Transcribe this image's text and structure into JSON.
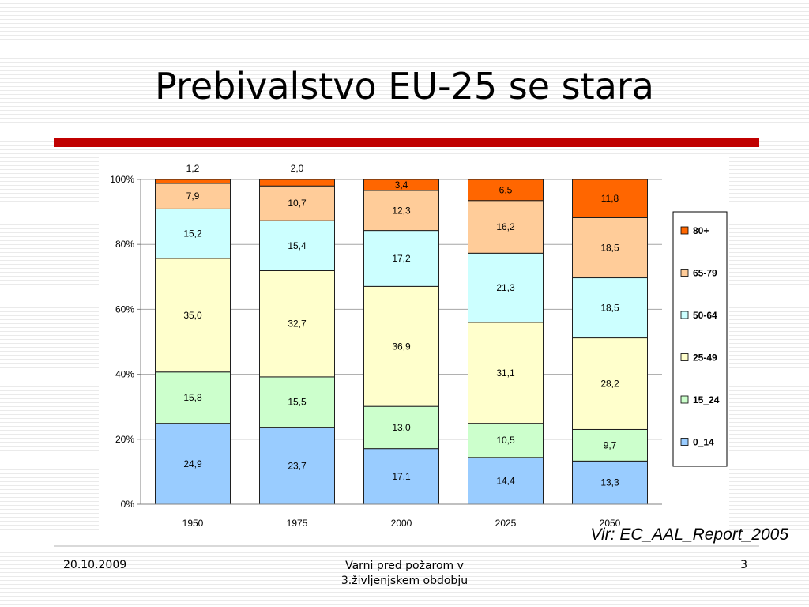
{
  "slide": {
    "title": "Prebivalstvo EU-25 se stara",
    "source_note": "Vir: EC_AAL_Report_2005",
    "footer": {
      "date": "20.10.2009",
      "center_line1": "Varni pred požarom v",
      "center_line2": "3.življenjskem obdobju",
      "page": "3"
    }
  },
  "chart_data": {
    "type": "bar",
    "stacked": true,
    "percent_stacked": true,
    "title": "",
    "xlabel": "",
    "ylabel": "",
    "ylim": [
      0,
      100
    ],
    "yticks": [
      "0%",
      "20%",
      "40%",
      "60%",
      "80%",
      "100%"
    ],
    "categories": [
      "1950",
      "1975",
      "2000",
      "2025",
      "2050"
    ],
    "grid": true,
    "legend_position": "right",
    "series": [
      {
        "name": "0_14",
        "color": "#99ccff",
        "values": [
          24.9,
          23.7,
          17.1,
          14.4,
          13.3
        ],
        "labels": [
          "24,9",
          "23,7",
          "17,1",
          "14,4",
          "13,3"
        ]
      },
      {
        "name": "15_24",
        "color": "#ccffcc",
        "values": [
          15.8,
          15.5,
          13.0,
          10.5,
          9.7
        ],
        "labels": [
          "15,8",
          "15,5",
          "13,0",
          "10,5",
          "9,7"
        ]
      },
      {
        "name": "25-49",
        "color": "#ffffcc",
        "values": [
          35.0,
          32.7,
          36.9,
          31.1,
          28.2
        ],
        "labels": [
          "35,0",
          "32,7",
          "36,9",
          "31,1",
          "28,2"
        ]
      },
      {
        "name": "50-64",
        "color": "#ccffff",
        "values": [
          15.2,
          15.4,
          17.2,
          21.3,
          18.5
        ],
        "labels": [
          "15,2",
          "15,4",
          "17,2",
          "21,3",
          "18,5"
        ]
      },
      {
        "name": "65-79",
        "color": "#ffcc99",
        "values": [
          7.9,
          10.7,
          12.3,
          16.2,
          18.5
        ],
        "labels": [
          "7,9",
          "10,7",
          "12,3",
          "16,2",
          "18,5"
        ]
      },
      {
        "name": "80+",
        "color": "#ff6600",
        "values": [
          1.2,
          2.0,
          3.4,
          6.5,
          11.8
        ],
        "labels": [
          "1,2",
          "2,0",
          "3,4",
          "6,5",
          "11,8"
        ]
      }
    ]
  }
}
